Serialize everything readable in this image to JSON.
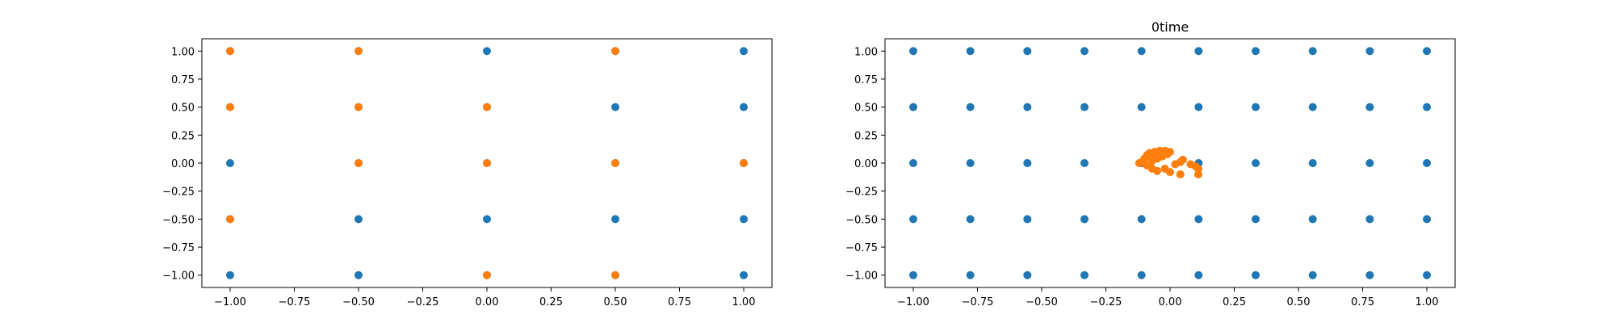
{
  "chart_data": [
    {
      "type": "scatter",
      "title": "",
      "xlabel": "",
      "ylabel": "",
      "xlim": [
        -1.11,
        1.11
      ],
      "ylim": [
        -1.11,
        1.11
      ],
      "grid": false,
      "xticks": [
        -1.0,
        -0.75,
        -0.5,
        -0.25,
        0.0,
        0.25,
        0.5,
        0.75,
        1.0
      ],
      "xtick_labels": [
        "−1.00",
        "−0.75",
        "−0.50",
        "−0.25",
        "0.00",
        "0.25",
        "0.50",
        "0.75",
        "1.00"
      ],
      "yticks": [
        1.0,
        0.75,
        0.5,
        0.25,
        0.0,
        -0.25,
        -0.5,
        -0.75,
        -1.0
      ],
      "ytick_labels": [
        "1.00",
        "0.75",
        "0.50",
        "0.25",
        "0.00",
        "−0.25",
        "−0.50",
        "−0.75",
        "−1.00"
      ],
      "series": [
        {
          "color": "#1f77b4",
          "points": [
            [
              -1,
              1
            ],
            [
              -0.5,
              1
            ],
            [
              0,
              1
            ],
            [
              0.5,
              1
            ],
            [
              1,
              1
            ],
            [
              -1,
              0.5
            ],
            [
              -0.5,
              0.5
            ],
            [
              0,
              0.5
            ],
            [
              0.5,
              0.5
            ],
            [
              1,
              0.5
            ],
            [
              -1,
              0
            ],
            [
              -0.5,
              0
            ],
            [
              0,
              0
            ],
            [
              0.5,
              0
            ],
            [
              1,
              0
            ],
            [
              -1,
              -0.5
            ],
            [
              -0.5,
              -0.5
            ],
            [
              0,
              -0.5
            ],
            [
              0.5,
              -0.5
            ],
            [
              1,
              -0.5
            ],
            [
              -1,
              -1
            ],
            [
              -0.5,
              -1
            ],
            [
              0,
              -1
            ],
            [
              0.5,
              -1
            ],
            [
              1,
              -1
            ]
          ]
        },
        {
          "color": "#ff7f0e",
          "points": [
            [
              -1,
              1
            ],
            [
              -0.5,
              1
            ],
            [
              0.5,
              1
            ],
            [
              -1,
              0.5
            ],
            [
              -0.5,
              0.5
            ],
            [
              0,
              0.5
            ],
            [
              -0.5,
              0
            ],
            [
              0,
              0
            ],
            [
              0.5,
              0
            ],
            [
              1,
              0
            ],
            [
              -1,
              -0.5
            ],
            [
              0,
              -1
            ],
            [
              0.5,
              -1
            ]
          ]
        }
      ]
    },
    {
      "type": "scatter",
      "title": "0time",
      "xlabel": "",
      "ylabel": "",
      "xlim": [
        -1.11,
        1.11
      ],
      "ylim": [
        -1.11,
        1.11
      ],
      "grid": false,
      "xticks": [
        -1.0,
        -0.75,
        -0.5,
        -0.25,
        0.0,
        0.25,
        0.5,
        0.75,
        1.0
      ],
      "xtick_labels": [
        "−1.00",
        "−0.75",
        "−0.50",
        "−0.25",
        "0.00",
        "0.25",
        "0.50",
        "0.75",
        "1.00"
      ],
      "yticks": [
        1.0,
        0.75,
        0.5,
        0.25,
        0.0,
        -0.25,
        -0.5,
        -0.75,
        -1.0
      ],
      "ytick_labels": [
        "1.00",
        "0.75",
        "0.50",
        "0.25",
        "0.00",
        "−0.25",
        "−0.50",
        "−0.75",
        "−1.00"
      ],
      "series": [
        {
          "color": "#1f77b4",
          "grid_x": [
            -1,
            -0.7778,
            -0.5556,
            -0.3333,
            -0.1111,
            0.1111,
            0.3333,
            0.5556,
            0.7778,
            1
          ],
          "grid_y": [
            1,
            0.5,
            0,
            -0.5,
            -1
          ]
        },
        {
          "color": "#ff7f0e",
          "points": [
            [
              -0.11,
              0.01
            ],
            [
              -0.1,
              0.04
            ],
            [
              -0.09,
              0.07
            ],
            [
              -0.08,
              0.09
            ],
            [
              -0.06,
              0.1
            ],
            [
              -0.04,
              0.11
            ],
            [
              -0.02,
              0.11
            ],
            [
              0.0,
              0.1
            ],
            [
              -0.01,
              0.08
            ],
            [
              -0.03,
              0.06
            ],
            [
              -0.05,
              0.04
            ],
            [
              -0.07,
              0.02
            ],
            [
              -0.09,
              -0.02
            ],
            [
              -0.07,
              -0.05
            ],
            [
              -0.05,
              -0.07
            ],
            [
              -0.02,
              -0.05
            ],
            [
              0.0,
              -0.08
            ],
            [
              0.02,
              -0.01
            ],
            [
              0.04,
              0.01
            ],
            [
              0.05,
              0.03
            ],
            [
              0.04,
              -0.1
            ],
            [
              0.08,
              -0.01
            ],
            [
              0.1,
              -0.03
            ],
            [
              0.11,
              -0.05
            ],
            [
              0.11,
              -0.1
            ],
            [
              -0.12,
              0.0
            ],
            [
              -0.06,
              0.08
            ],
            [
              -0.03,
              0.09
            ]
          ]
        }
      ]
    }
  ]
}
